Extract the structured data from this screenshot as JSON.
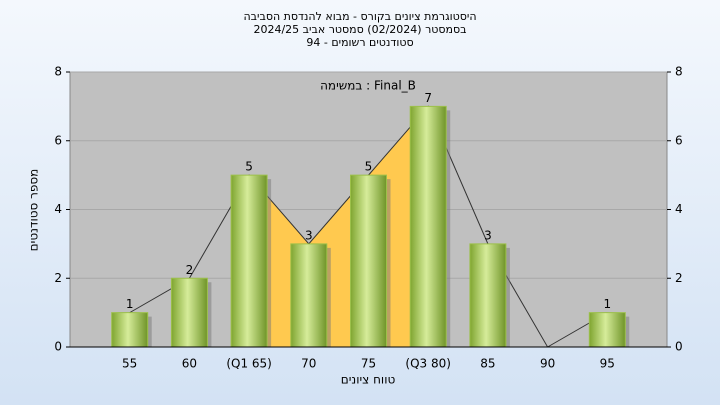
{
  "chart_data": {
    "type": "bar",
    "title": [
      "היסטוגרמת ציונים בקורס - מבוא להנדסת הסביבה",
      "בסמסטר  (02/2024)  סמסטר אביב 2024/25",
      "סטודנטים רשומים - 94"
    ],
    "annotation": "במשימה : Final_B",
    "x_label": "טווח ציונים",
    "y_label": "מספר סטודנטים",
    "categories": [
      "55",
      "60",
      "(Q1 65)",
      "70",
      "75",
      "(Q3 80)",
      "85",
      "90",
      "95"
    ],
    "values": [
      1,
      2,
      5,
      3,
      5,
      7,
      3,
      0,
      1
    ],
    "color": "#9cc04a",
    "area_color": "#ffc94f",
    "ylim": [
      0,
      8
    ],
    "yticks": [
      0,
      2,
      4,
      6,
      8
    ],
    "grid": true
  }
}
